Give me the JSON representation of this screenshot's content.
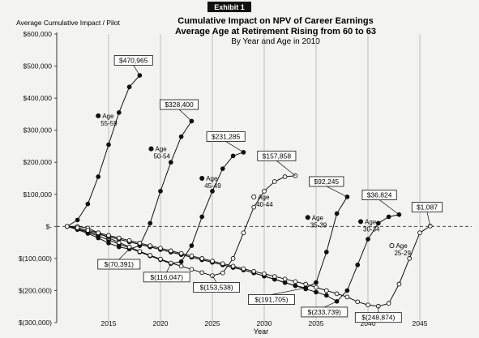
{
  "chart_data": {
    "type": "line",
    "exhibit_label": "Exhibit 1",
    "title": "Cumulative Impact on NPV of Career Earnings",
    "title2": "Average Age at Retirement Rising from 60 to 63",
    "subtitle": "By Year and Age in 2010",
    "ylabel": "Average Cumulative Impact / Pilot",
    "xlabel": "Year",
    "xlim": [
      2010,
      2050
    ],
    "ylim": [
      -300000,
      600000
    ],
    "yticks": [
      600000,
      500000,
      400000,
      300000,
      200000,
      100000,
      0,
      -100000,
      -200000,
      -300000
    ],
    "yticklabels": [
      "$600,000",
      "$500,000",
      "$400,000",
      "$300,000",
      "$200,000",
      "$100,000",
      "$-",
      "$(100,000)",
      "$(200,000)",
      "$(300,000)"
    ],
    "xticks": [
      2015,
      2020,
      2025,
      2030,
      2035,
      2040,
      2045
    ],
    "grid": "vertical",
    "series": [
      {
        "name": "Age 55-59",
        "marker": "filled",
        "x": [
          2011,
          2012,
          2013,
          2014,
          2015,
          2016,
          2017,
          2018
        ],
        "y": [
          0,
          20000,
          70000,
          155000,
          255000,
          355000,
          435000,
          470965
        ]
      },
      {
        "name": "Age 50-54",
        "marker": "filled",
        "x": [
          2011,
          2012,
          2013,
          2014,
          2015,
          2016,
          2017,
          2018,
          2019,
          2020,
          2021,
          2022,
          2023
        ],
        "y": [
          0,
          -10000,
          -22000,
          -36000,
          -52000,
          -64000,
          -70391,
          -60000,
          10000,
          110000,
          200000,
          280000,
          328400
        ]
      },
      {
        "name": "Age 45-49",
        "marker": "filled",
        "x": [
          2011,
          2012,
          2013,
          2014,
          2015,
          2016,
          2017,
          2018,
          2019,
          2020,
          2021,
          2022,
          2023,
          2024,
          2025,
          2026,
          2027,
          2028
        ],
        "y": [
          0,
          -8000,
          -18000,
          -30000,
          -42000,
          -55000,
          -67000,
          -80000,
          -92000,
          -104000,
          -116047,
          -110000,
          -60000,
          30000,
          110000,
          180000,
          220000,
          231285
        ]
      },
      {
        "name": "Age 40-44",
        "marker": "open",
        "x": [
          2011,
          2012,
          2013,
          2014,
          2015,
          2016,
          2017,
          2018,
          2019,
          2020,
          2021,
          2022,
          2023,
          2024,
          2025,
          2026,
          2027,
          2028,
          2029,
          2030,
          2031,
          2032,
          2033
        ],
        "y": [
          0,
          0,
          -5000,
          -20000,
          -36000,
          -50000,
          -64000,
          -78000,
          -90000,
          -102000,
          -114000,
          -124000,
          -134000,
          -144000,
          -153538,
          -145000,
          -100000,
          -20000,
          60000,
          110000,
          140000,
          155000,
          157858
        ]
      },
      {
        "name": "Age 35-39",
        "marker": "filled",
        "x": [
          2011,
          2012,
          2013,
          2014,
          2015,
          2016,
          2017,
          2018,
          2019,
          2020,
          2021,
          2022,
          2023,
          2024,
          2025,
          2026,
          2027,
          2028,
          2029,
          2030,
          2031,
          2032,
          2033,
          2034,
          2035,
          2036,
          2037,
          2038
        ],
        "y": [
          0,
          -8000,
          -16000,
          -24000,
          -32000,
          -40000,
          -48000,
          -56000,
          -64000,
          -72000,
          -80000,
          -88000,
          -96000,
          -104000,
          -112000,
          -120000,
          -128000,
          -136000,
          -145000,
          -155000,
          -165000,
          -175000,
          -185000,
          -191705,
          -175000,
          -80000,
          40000,
          92245
        ]
      },
      {
        "name": "Age 30-34",
        "marker": "filled",
        "x": [
          2011,
          2012,
          2013,
          2014,
          2015,
          2016,
          2017,
          2018,
          2019,
          2020,
          2021,
          2022,
          2023,
          2024,
          2025,
          2026,
          2027,
          2028,
          2029,
          2030,
          2031,
          2032,
          2033,
          2034,
          2035,
          2036,
          2037,
          2038,
          2039,
          2040,
          2041,
          2042,
          2043
        ],
        "y": [
          0,
          -8000,
          -16000,
          -24000,
          -32000,
          -40000,
          -48000,
          -56000,
          -64000,
          -72000,
          -80000,
          -88000,
          -96000,
          -104000,
          -112000,
          -120000,
          -128000,
          -136000,
          -145000,
          -155000,
          -165000,
          -175000,
          -185000,
          -195000,
          -205000,
          -215000,
          -233739,
          -200000,
          -120000,
          -40000,
          10000,
          30000,
          36824
        ]
      },
      {
        "name": "Age 25-29",
        "marker": "open",
        "x": [
          2011,
          2012,
          2013,
          2014,
          2015,
          2016,
          2017,
          2018,
          2019,
          2020,
          2021,
          2022,
          2023,
          2024,
          2025,
          2026,
          2027,
          2028,
          2029,
          2030,
          2031,
          2032,
          2033,
          2034,
          2035,
          2036,
          2037,
          2038,
          2039,
          2040,
          2041,
          2042,
          2043,
          2044,
          2045,
          2046
        ],
        "y": [
          0,
          -4000,
          -12000,
          -20000,
          -28000,
          -36000,
          -44000,
          -52000,
          -60000,
          -68000,
          -76000,
          -84000,
          -92000,
          -100000,
          -108000,
          -116000,
          -124000,
          -132000,
          -140000,
          -148000,
          -156000,
          -164000,
          -172000,
          -180000,
          -190000,
          -200000,
          -210000,
          -220000,
          -235000,
          -245000,
          -248874,
          -240000,
          -180000,
          -100000,
          -20000,
          1087
        ]
      }
    ],
    "annotations": [
      {
        "text": "Age",
        "text2": "55-59",
        "x": 2014,
        "y": 345000,
        "marker": "filled"
      },
      {
        "text": "Age",
        "text2": "50-54",
        "x": 2019.1,
        "y": 242000,
        "marker": "filled"
      },
      {
        "text": "Age",
        "text2": "45-49",
        "x": 2024,
        "y": 150000,
        "marker": "filled"
      },
      {
        "text": "Age",
        "text2": "40-44",
        "x": 2029,
        "y": 92000,
        "marker": "open"
      },
      {
        "text": "Age",
        "text2": "35-39",
        "x": 2034.2,
        "y": 28000,
        "marker": "filled"
      },
      {
        "text": "Age",
        "text2": "30-34",
        "x": 2039.3,
        "y": 15000,
        "marker": "filled"
      },
      {
        "text": "Age",
        "text2": "25-29",
        "x": 2042.3,
        "y": -60000,
        "marker": "open"
      }
    ],
    "callouts": [
      {
        "label": "$470,965",
        "x": 2018,
        "y": 470965,
        "bx": 2017.4,
        "by": 518000
      },
      {
        "label": "$328,400",
        "x": 2023,
        "y": 328400,
        "bx": 2021.8,
        "by": 380000
      },
      {
        "label": "$231,285",
        "x": 2028,
        "y": 231285,
        "bx": 2026.3,
        "by": 280000
      },
      {
        "label": "$157,858",
        "x": 2033,
        "y": 157858,
        "bx": 2031.2,
        "by": 220000
      },
      {
        "label": "$92,245",
        "x": 2038,
        "y": 92245,
        "bx": 2036,
        "by": 140000
      },
      {
        "label": "$36,824",
        "x": 2043,
        "y": 36824,
        "bx": 2041.1,
        "by": 98000
      },
      {
        "label": "$1,087",
        "x": 2046,
        "y": 1087,
        "bx": 2045.7,
        "by": 60000
      },
      {
        "label": "$(70,391)",
        "x": 2017,
        "y": -70391,
        "bx": 2016,
        "by": -118000
      },
      {
        "label": "$(116,047)",
        "x": 2021,
        "y": -116047,
        "bx": 2020.6,
        "by": -158000
      },
      {
        "label": "$(153,538)",
        "x": 2025,
        "y": -153538,
        "bx": 2025.4,
        "by": -190000
      },
      {
        "label": "$(191,705)",
        "x": 2034,
        "y": -191705,
        "bx": 2030.7,
        "by": -228000
      },
      {
        "label": "$(233,739)",
        "x": 2037,
        "y": -233739,
        "bx": 2035.8,
        "by": -267000
      },
      {
        "label": "$(248,874)",
        "x": 2041,
        "y": -248874,
        "bx": 2041,
        "by": -284000
      }
    ]
  }
}
